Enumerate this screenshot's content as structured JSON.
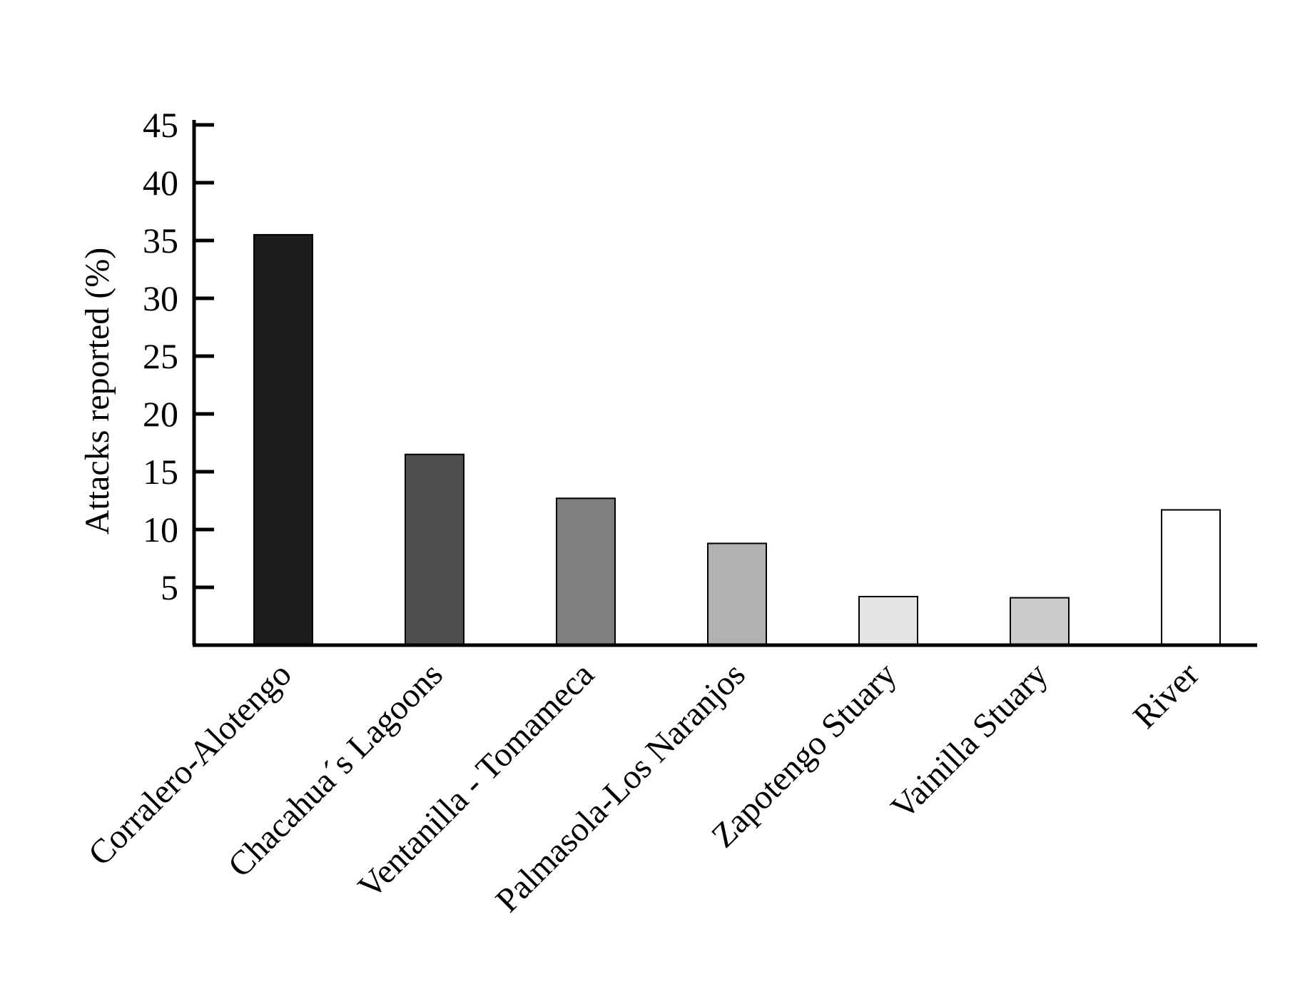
{
  "chart_data": {
    "type": "bar",
    "title": "",
    "xlabel": "",
    "ylabel": "Attacks reported (%)",
    "ylim": [
      0,
      45
    ],
    "yticks": [
      5,
      10,
      15,
      20,
      25,
      30,
      35,
      40,
      45
    ],
    "grid": false,
    "legend": "none",
    "categories": [
      "Corralero-Alotengo",
      "Chacahua´s Lagoons",
      "Ventanilla - Tomameca",
      "Palmasola-Los Naranjos",
      "Zapotengo Stuary",
      "Vainilla Stuary",
      "River"
    ],
    "values": [
      35.5,
      16.5,
      12.7,
      8.8,
      4.2,
      4.1,
      11.7
    ],
    "colors": [
      "#1c1c1c",
      "#4d4d4d",
      "#7f7f7f",
      "#b1b1b1",
      "#e4e4e4",
      "#cccccc",
      "#ffffff"
    ]
  }
}
